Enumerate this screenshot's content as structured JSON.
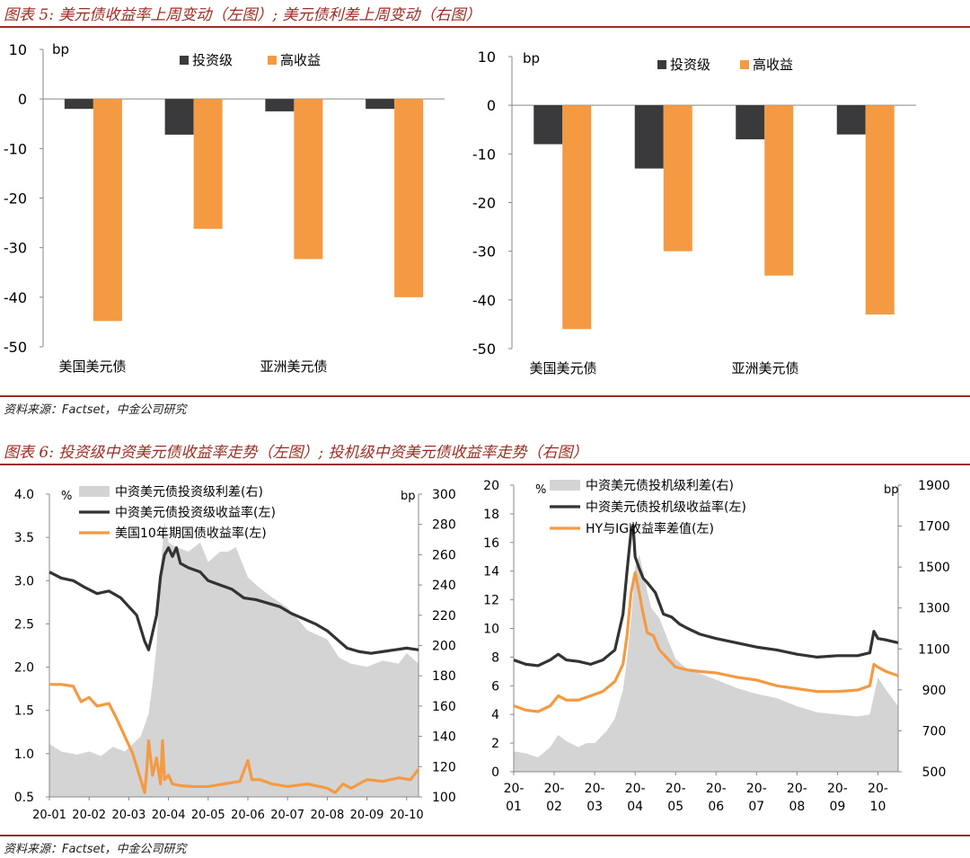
{
  "figure5": {
    "title": "图表 5: 美元债收益率上周变动（左图）; 美元债利差上周变动（右图）",
    "source": "资料来源：Factset，中金公司研究"
  },
  "figure6": {
    "title": "图表 6: 投资级中资美元债收益率走势（左图）; 投机级中资美元债收益率走势（右图）",
    "source": "资料来源：Factset，中金公司研究"
  },
  "chart_data": [
    {
      "id": "fig5-left",
      "type": "bar",
      "unit": "bp",
      "categories": [
        "美国美元债",
        "",
        "亚洲美元债",
        ""
      ],
      "series": [
        {
          "name": "投资级",
          "color": "#3a3a3c",
          "values": [
            -2,
            -7.2,
            -2.5,
            -2
          ]
        },
        {
          "name": "高收益",
          "color": "#f39a43",
          "values": [
            -44.8,
            -26.2,
            -32.3,
            -40
          ]
        }
      ],
      "ylim": [
        -50,
        10
      ],
      "yticks": [
        "10",
        "0",
        "-10",
        "-20",
        "-30",
        "-40",
        "-50"
      ],
      "legend_placement": "top-center"
    },
    {
      "id": "fig5-right",
      "type": "bar",
      "unit": "bp",
      "categories": [
        "美国美元债",
        "",
        "亚洲美元债",
        ""
      ],
      "series": [
        {
          "name": "投资级",
          "color": "#3a3a3c",
          "values": [
            -8,
            -13,
            -7,
            -6
          ]
        },
        {
          "name": "高收益",
          "color": "#f39a43",
          "values": [
            -46,
            -30,
            -35,
            -43
          ]
        }
      ],
      "ylim": [
        -50,
        10
      ],
      "yticks": [
        "10",
        "0",
        "-10",
        "-20",
        "-30",
        "-40",
        "-50"
      ],
      "legend_placement": "top-center"
    },
    {
      "id": "fig6-left",
      "type": "line",
      "left_unit": "%",
      "right_unit": "bp",
      "xlim": [
        0,
        9.3
      ],
      "xticks": [
        "20-01",
        "20-02",
        "20-03",
        "20-04",
        "20-05",
        "20-06",
        "20-07",
        "20-08",
        "20-09",
        "20-10"
      ],
      "ylim_left": [
        0.5,
        4.0
      ],
      "yticks_left": [
        "4.0",
        "3.5",
        "3.0",
        "2.5",
        "2.0",
        "1.5",
        "1.0",
        "0.5"
      ],
      "ylim_right": [
        100,
        300
      ],
      "yticks_right": [
        "300",
        "280",
        "260",
        "240",
        "220",
        "200",
        "180",
        "160",
        "140",
        "120",
        "100"
      ],
      "series": [
        {
          "name": "中资美元债投资级利差(右)",
          "kind": "area",
          "axis": "right",
          "color": "#d4d4d4",
          "x": [
            0,
            0.3,
            0.7,
            1.0,
            1.3,
            1.6,
            1.9,
            2.1,
            2.3,
            2.5,
            2.6,
            2.7,
            2.8,
            2.9,
            3.0,
            3.2,
            3.5,
            3.8,
            4.0,
            4.3,
            4.5,
            4.7,
            5.0,
            5.3,
            5.6,
            6.0,
            6.5,
            7.0,
            7.3,
            7.6,
            8.0,
            8.4,
            8.8,
            9.0,
            9.3
          ],
          "y": [
            135,
            130,
            128,
            130,
            127,
            133,
            130,
            135,
            140,
            155,
            175,
            200,
            250,
            282,
            268,
            265,
            262,
            268,
            255,
            262,
            262,
            265,
            245,
            238,
            232,
            225,
            210,
            204,
            192,
            188,
            186,
            190,
            188,
            195,
            188
          ]
        },
        {
          "name": "中资美元债投资级收益率(左)",
          "kind": "line",
          "axis": "left",
          "color": "#333333",
          "x": [
            0,
            0.3,
            0.6,
            0.9,
            1.2,
            1.5,
            1.8,
            2.0,
            2.2,
            2.4,
            2.5,
            2.6,
            2.7,
            2.8,
            2.9,
            3.0,
            3.1,
            3.2,
            3.3,
            3.5,
            3.8,
            4.0,
            4.3,
            4.6,
            4.9,
            5.2,
            5.5,
            5.8,
            6.1,
            6.4,
            6.7,
            7.0,
            7.3,
            7.5,
            7.8,
            8.1,
            8.4,
            8.7,
            9.0,
            9.3
          ],
          "y": [
            3.1,
            3.03,
            3.0,
            2.92,
            2.85,
            2.88,
            2.8,
            2.7,
            2.6,
            2.3,
            2.2,
            2.4,
            2.6,
            3.05,
            3.3,
            3.38,
            3.28,
            3.38,
            3.2,
            3.15,
            3.1,
            3.0,
            2.95,
            2.9,
            2.8,
            2.78,
            2.74,
            2.7,
            2.62,
            2.56,
            2.5,
            2.42,
            2.3,
            2.22,
            2.18,
            2.16,
            2.18,
            2.2,
            2.22,
            2.2
          ]
        },
        {
          "name": "美国10年期国债收益率(左)",
          "kind": "line",
          "axis": "left",
          "color": "#f39a43",
          "x": [
            0,
            0.3,
            0.6,
            0.8,
            1.0,
            1.2,
            1.5,
            1.7,
            1.9,
            2.1,
            2.3,
            2.4,
            2.45,
            2.5,
            2.6,
            2.7,
            2.8,
            2.85,
            2.9,
            3.0,
            3.1,
            3.3,
            3.6,
            4.0,
            4.4,
            4.8,
            5.0,
            5.1,
            5.3,
            5.6,
            6.0,
            6.5,
            7.0,
            7.2,
            7.4,
            7.6,
            8.0,
            8.4,
            8.8,
            9.1,
            9.3
          ],
          "y": [
            1.8,
            1.8,
            1.78,
            1.6,
            1.65,
            1.55,
            1.58,
            1.4,
            1.2,
            1.0,
            0.7,
            0.55,
            0.8,
            1.15,
            0.75,
            0.95,
            0.65,
            1.15,
            0.7,
            0.75,
            0.65,
            0.63,
            0.62,
            0.62,
            0.65,
            0.68,
            0.92,
            0.7,
            0.7,
            0.65,
            0.62,
            0.65,
            0.6,
            0.55,
            0.65,
            0.6,
            0.7,
            0.68,
            0.72,
            0.7,
            0.82
          ]
        }
      ],
      "legend_placement": "top-center"
    },
    {
      "id": "fig6-right",
      "type": "line",
      "left_unit": "%",
      "right_unit": "bp",
      "xlim": [
        0,
        9.5
      ],
      "xticks": [
        "20-\n01",
        "20-\n02",
        "20-\n03",
        "20-\n04",
        "20-\n05",
        "20-\n06",
        "20-\n07",
        "20-\n08",
        "20-\n09",
        "20-\n10"
      ],
      "ylim_left": [
        0,
        20
      ],
      "yticks_left": [
        "20",
        "18",
        "16",
        "14",
        "12",
        "10",
        "8",
        "6",
        "4",
        "2",
        "0"
      ],
      "ylim_right": [
        500,
        1900
      ],
      "yticks_right": [
        "1900",
        "1700",
        "1500",
        "1300",
        "1100",
        "900",
        "700",
        "500"
      ],
      "series": [
        {
          "name": "中资美元债投机级利差(右)",
          "kind": "area",
          "axis": "right",
          "color": "#d4d4d4",
          "x": [
            0,
            0.3,
            0.6,
            0.9,
            1.1,
            1.3,
            1.6,
            1.8,
            2.0,
            2.3,
            2.5,
            2.7,
            2.8,
            2.9,
            3.0,
            3.1,
            3.2,
            3.3,
            3.4,
            3.6,
            3.8,
            4.0,
            4.3,
            4.6,
            5.0,
            5.5,
            6.0,
            6.5,
            7.0,
            7.5,
            8.0,
            8.5,
            8.8,
            9.0,
            9.2,
            9.5
          ],
          "y": [
            600,
            590,
            570,
            620,
            680,
            650,
            620,
            640,
            640,
            700,
            760,
            900,
            1050,
            1250,
            1500,
            1560,
            1480,
            1380,
            1300,
            1250,
            1150,
            1050,
            1000,
            980,
            950,
            910,
            880,
            860,
            820,
            790,
            780,
            770,
            780,
            960,
            900,
            820
          ]
        },
        {
          "name": "中资美元债投机级收益率(左)",
          "kind": "line",
          "axis": "left",
          "color": "#333333",
          "x": [
            0,
            0.3,
            0.6,
            0.9,
            1.1,
            1.3,
            1.6,
            1.9,
            2.2,
            2.5,
            2.7,
            2.8,
            2.9,
            2.95,
            3.0,
            3.1,
            3.2,
            3.3,
            3.5,
            3.7,
            3.9,
            4.1,
            4.3,
            4.6,
            5.0,
            5.5,
            6.0,
            6.5,
            7.0,
            7.5,
            8.0,
            8.5,
            8.8,
            8.9,
            9.0,
            9.2,
            9.5
          ],
          "y": [
            7.8,
            7.5,
            7.4,
            7.8,
            8.2,
            7.8,
            7.7,
            7.5,
            7.8,
            8.5,
            11,
            14,
            16.8,
            17.2,
            15,
            14.2,
            13.5,
            13.2,
            12.5,
            11,
            10.8,
            10.3,
            10,
            9.6,
            9.3,
            9,
            8.7,
            8.5,
            8.2,
            8.0,
            8.1,
            8.1,
            8.3,
            9.8,
            9.3,
            9.2,
            9.0
          ]
        },
        {
          "name": "HY与IG收益率差值(左)",
          "kind": "line",
          "axis": "left",
          "color": "#f39a43",
          "x": [
            0,
            0.3,
            0.6,
            0.9,
            1.1,
            1.3,
            1.6,
            1.9,
            2.2,
            2.5,
            2.7,
            2.8,
            2.9,
            3.0,
            3.1,
            3.2,
            3.3,
            3.45,
            3.6,
            3.8,
            4.0,
            4.3,
            4.6,
            5.0,
            5.5,
            6.0,
            6.5,
            7.0,
            7.5,
            8.0,
            8.5,
            8.8,
            8.9,
            9.0,
            9.2,
            9.5
          ],
          "y": [
            4.6,
            4.3,
            4.2,
            4.6,
            5.3,
            5.0,
            5.0,
            5.3,
            5.6,
            6.3,
            7.5,
            9.5,
            12.5,
            13.9,
            12.5,
            11.0,
            9.7,
            9.5,
            8.5,
            7.9,
            7.3,
            7.1,
            7.0,
            6.9,
            6.6,
            6.4,
            6.0,
            5.8,
            5.6,
            5.6,
            5.7,
            6.0,
            7.5,
            7.3,
            7.0,
            6.7
          ]
        }
      ],
      "legend_placement": "top-center"
    }
  ]
}
